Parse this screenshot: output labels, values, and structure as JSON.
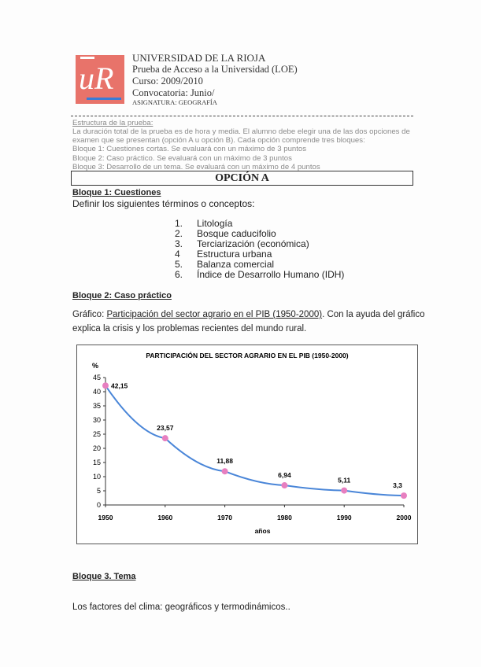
{
  "header": {
    "university": "UNIVERSIDAD DE LA RIOJA",
    "exam": "Prueba de Acceso a la Universidad (LOE)",
    "course": "Curso: 2009/2010",
    "call": "Convocatoria: Junio/",
    "subject": "ASIGNATURA: GEOGRAFÍA",
    "logo_text": "uR",
    "logo_color": "#e8736a"
  },
  "structure": {
    "title": "Estructura de la prueba:",
    "lines": [
      "La duración total de la prueba es de hora y media. El alumno debe elegir una de las dos opciones de",
      "examen que se presentan (opción A u opción B). Cada opción comprende tres bloques:",
      "Bloque 1: Cuestiones cortas. Se evaluará con un máximo de 3 puntos",
      "Bloque 2: Caso práctico. Se evaluará con un máximo de 3 puntos",
      "Bloque 3: Desarrollo de un tema. Se evaluará con un máximo de 4 puntos"
    ]
  },
  "option_title": "OPCIÓN A",
  "block1": {
    "title": "Bloque 1: Cuestiones",
    "intro": "Definir los siguientes términos o conceptos:",
    "items": [
      {
        "n": "1.",
        "t": "Litología"
      },
      {
        "n": "2.",
        "t": "Bosque caducifolio"
      },
      {
        "n": "3.",
        "t": "Terciarización (económica)"
      },
      {
        "n": "4",
        "t": "Estructura urbana"
      },
      {
        "n": "5.",
        "t": "Balanza comercial"
      },
      {
        "n": "6.",
        "t": "Índice de Desarrollo Humano (IDH)"
      }
    ]
  },
  "block2": {
    "title": "Bloque 2: Caso práctico",
    "prefix": "Gráfico: ",
    "link": "Participación del sector agrario en el PIB (1950-2000)",
    "rest": ". Con la ayuda del gráfico",
    "line2": "explica la crisis y los problemas recientes del mundo rural."
  },
  "block3": {
    "title": "Bloque 3. Tema",
    "text": "Los factores del clima: geográficos y termodinámicos.."
  },
  "chart_data": {
    "type": "line",
    "title": "PARTICIPACIÓN DEL SECTOR AGRARIO EN EL PIB (1950-2000)",
    "xlabel": "años",
    "ylabel": "%",
    "x": [
      1950,
      1960,
      1970,
      1980,
      1990,
      2000
    ],
    "x_tick_labels": [
      "1950",
      "1960",
      "1970",
      "1980",
      "1990",
      "2000"
    ],
    "values": [
      42.15,
      23.57,
      11.88,
      6.94,
      5.11,
      3.3
    ],
    "data_labels": [
      "42,15",
      "23,57",
      "11,88",
      "6,94",
      "5,11",
      "3,3"
    ],
    "y_ticks": [
      0,
      5,
      10,
      15,
      20,
      25,
      30,
      35,
      40,
      45
    ],
    "ylim": [
      0,
      45
    ],
    "xlim": [
      1950,
      2000
    ],
    "grid": false,
    "line_color": "#4a86d8",
    "marker_color": "#e77fc0"
  }
}
